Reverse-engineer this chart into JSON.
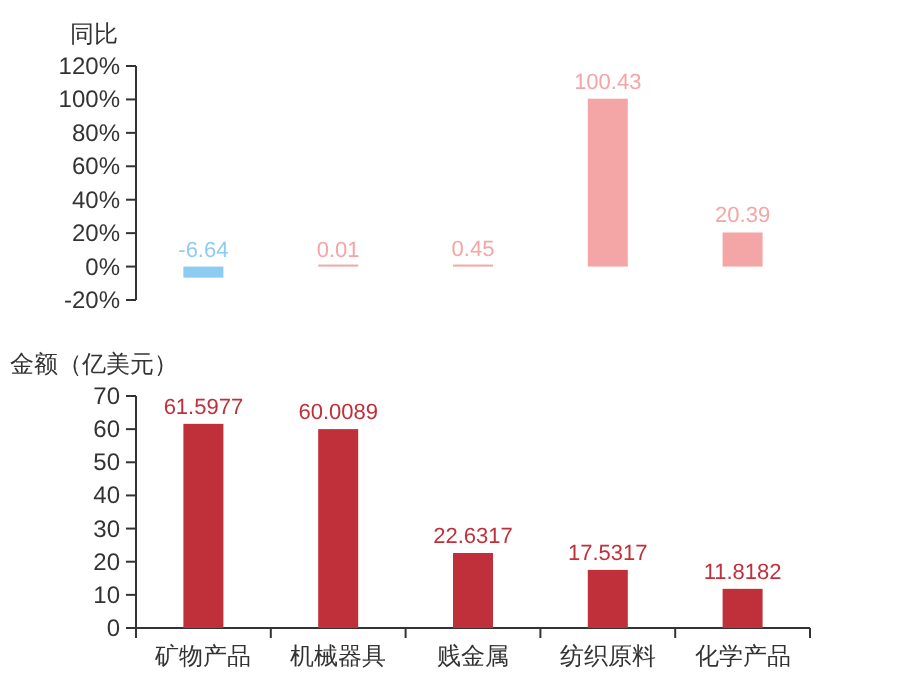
{
  "chart_data": [
    {
      "type": "bar",
      "ylabel": "同比",
      "categories": [
        "矿物产品",
        "机械器具",
        "贱金属",
        "纺织原料",
        "化学产品"
      ],
      "series": [
        {
          "values": [
            -6.64,
            0.01,
            0.45,
            100.43,
            20.39
          ],
          "colors": [
            "#8ecbf0",
            "#f4a6a6",
            "#f4a6a6",
            "#f4a6a6",
            "#f4a6a6"
          ]
        }
      ],
      "ylim": [
        -20,
        120
      ],
      "yticks": [
        {
          "value": -20,
          "label": "-20%"
        },
        {
          "value": 0,
          "label": "0%"
        },
        {
          "value": 20,
          "label": "20%"
        },
        {
          "value": 40,
          "label": "40%"
        },
        {
          "value": 60,
          "label": "60%"
        },
        {
          "value": 80,
          "label": "80%"
        },
        {
          "value": 100,
          "label": "100%"
        },
        {
          "value": 120,
          "label": "120%"
        }
      ],
      "data_labels": true,
      "grid": false,
      "tick_labels": "y"
    },
    {
      "type": "bar",
      "ylabel": "金额（亿美元）",
      "categories": [
        "矿物产品",
        "机械器具",
        "贱金属",
        "纺织原料",
        "化学产品"
      ],
      "series": [
        {
          "values": [
            61.5977,
            60.0089,
            22.6317,
            17.5317,
            11.8182
          ],
          "color": "#c0303a"
        }
      ],
      "ylim": [
        0,
        70
      ],
      "yticks": [
        0,
        10,
        20,
        30,
        40,
        50,
        60,
        70
      ],
      "data_labels": true,
      "grid": false
    }
  ]
}
